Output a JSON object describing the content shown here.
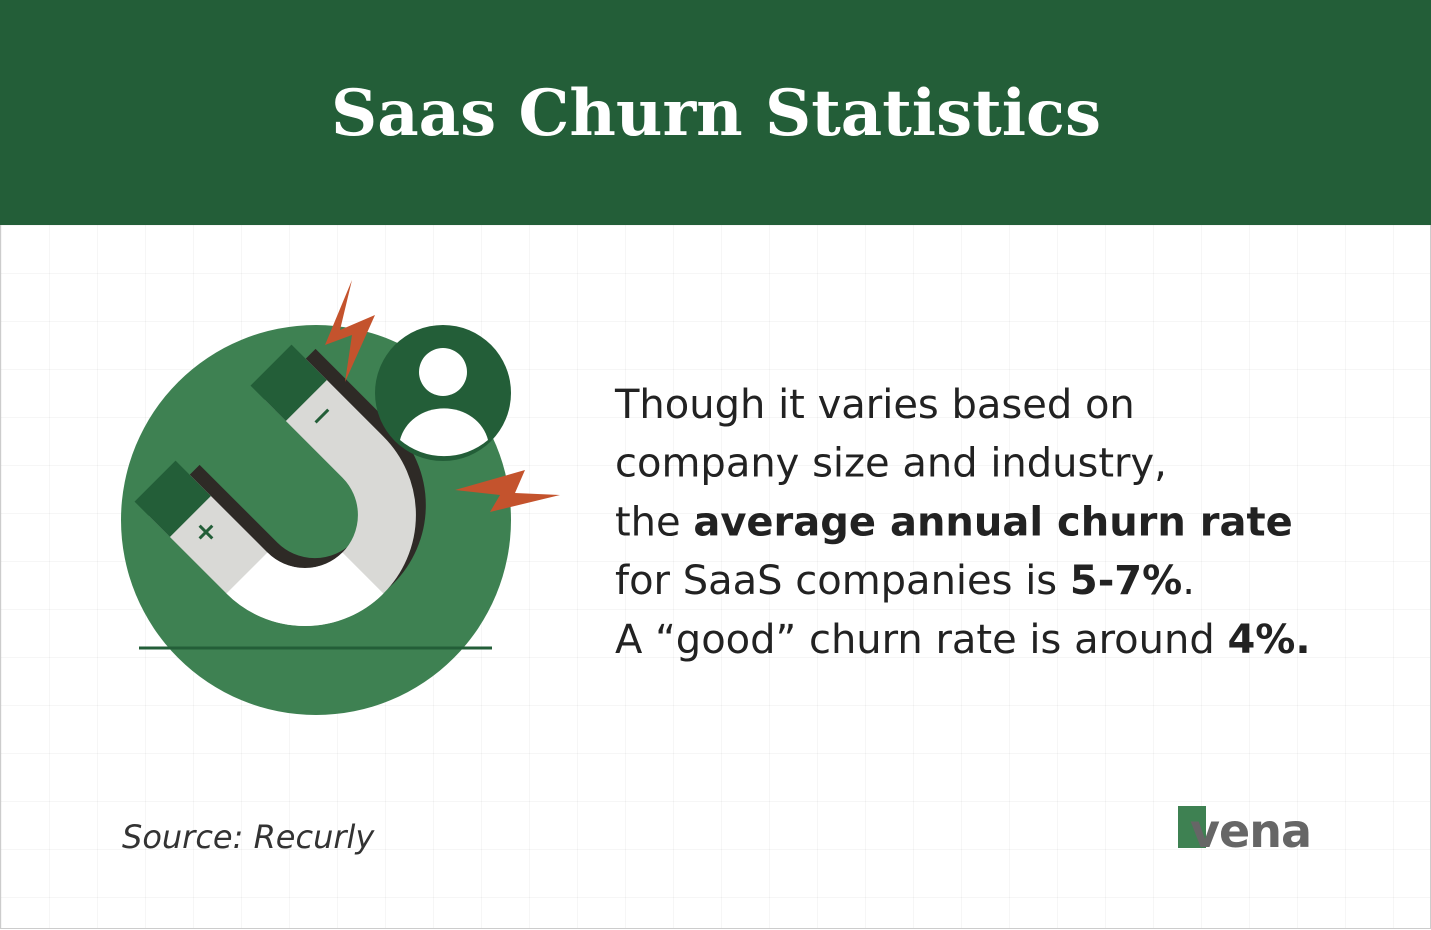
{
  "header": {
    "title": "Saas Churn Statistics"
  },
  "body": {
    "lines": [
      [
        {
          "text": "Though it varies based on",
          "bold": false
        }
      ],
      [
        {
          "text": "company size and industry,",
          "bold": false
        }
      ],
      [
        {
          "text": "the ",
          "bold": false
        },
        {
          "text": "average annual churn rate",
          "bold": true
        }
      ],
      [
        {
          "text": "for SaaS companies is ",
          "bold": false
        },
        {
          "text": "5-7%",
          "bold": true
        },
        {
          "text": ".",
          "bold": false
        }
      ],
      [
        {
          "text": "A “good” churn rate is around ",
          "bold": false
        },
        {
          "text": "4%.",
          "bold": true
        }
      ]
    ]
  },
  "footer": {
    "source": "Source: Recurly",
    "logo": "vena"
  }
}
